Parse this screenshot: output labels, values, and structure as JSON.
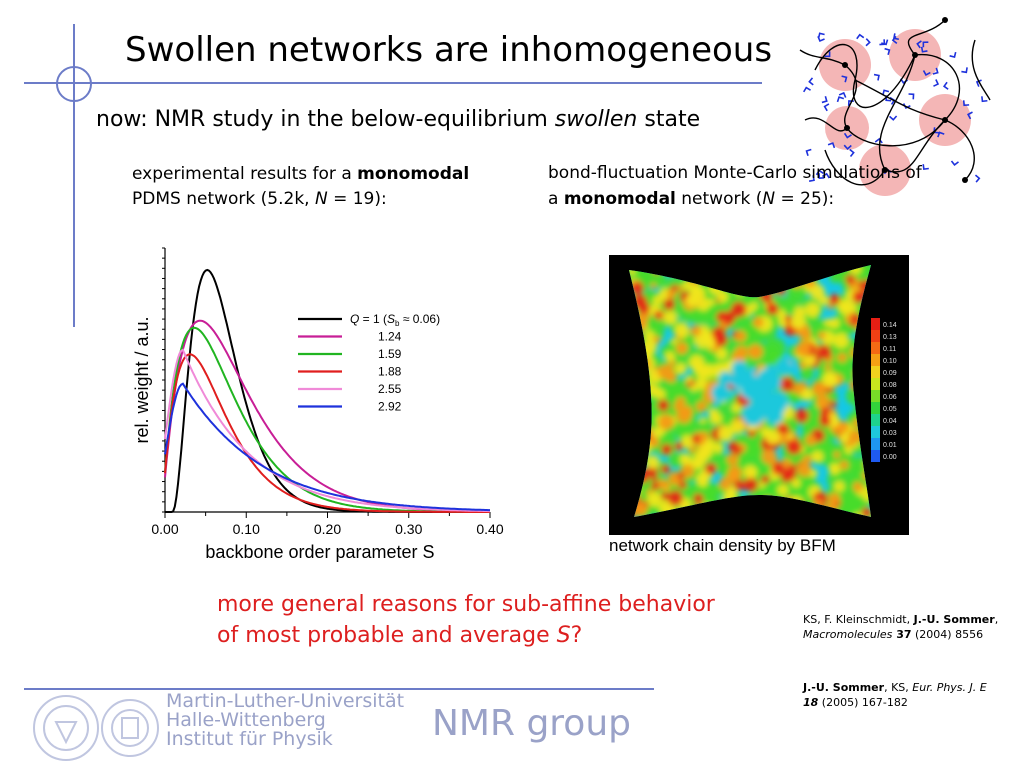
{
  "slide": {
    "title": "Swollen networks are inhomogeneous",
    "subtitle_pre": "now: NMR study in the below-equilibrium ",
    "subtitle_em": "swollen",
    "subtitle_post": " state",
    "left_caption": {
      "line1_pre": "experimental results for a ",
      "line1_bold": "monomodal",
      "line2_pre": "PDMS network (5.2k, ",
      "line2_em": "N",
      "line2_post": " = 19):"
    },
    "right_caption": {
      "line1": "bond-fluctuation Monte-Carlo simulations of",
      "line2_pre": "a ",
      "line2_bold": "monomodal",
      "line2_mid": " network (",
      "line2_em": "N",
      "line2_post": " = 25):"
    },
    "sim_label": "network chain density by BFM",
    "question_line1": "more general reasons for sub-affine behavior",
    "question_line2_pre": "of most probable and average ",
    "question_line2_em": "S",
    "question_line2_post": "?",
    "ref1": {
      "authors_pre": "KS, F. Kleinschmidt, ",
      "authors_bold": "J.-U. Sommer",
      "sep": ", ",
      "journal": "Macromolecules",
      "volume": " 37",
      "rest": " (2004) 8556"
    },
    "ref2": {
      "authors_bold": "J.-U. Sommer",
      "sep": ", KS, ",
      "journal": "Eur. Phys. J. E",
      "volume": " 18",
      "rest": " (2005) 167-182"
    },
    "uni_line1": "Martin-Luther-Universität",
    "uni_line2": "Halle-Wittenberg",
    "uni_line3": "Institut für Physik",
    "group": "NMR group"
  },
  "colors": {
    "accent_line": "#6c7cc8",
    "question": "#dd1f1f",
    "footer_text": "#9aa2c8"
  },
  "colorbar_ticks": [
    "0.14",
    "0.13",
    "0.11",
    "0.10",
    "0.09",
    "0.08",
    "0.06",
    "0.05",
    "0.04",
    "0.03",
    "0.01",
    "0.00"
  ],
  "chart_data": {
    "type": "line",
    "xlabel": "backbone order parameter S",
    "ylabel": "rel. weight  /  a.u.",
    "xlim": [
      0.0,
      0.4
    ],
    "x_ticks": [
      "0.00",
      "0.10",
      "0.20",
      "0.30",
      "0.40"
    ],
    "legend_placement": "top-right",
    "legend_header_extra": "( S_b ≈ 0.06)",
    "series": [
      {
        "name": "Q = 1",
        "color": "#000000",
        "peak": 0.052,
        "height": 1.0,
        "kind": "narrow"
      },
      {
        "name": "1.24",
        "color": "#c81e96",
        "peak": 0.045,
        "height": 0.79,
        "kind": "mid"
      },
      {
        "name": "1.59",
        "color": "#21b521",
        "peak": 0.038,
        "height": 0.76,
        "kind": "mid"
      },
      {
        "name": "1.88",
        "color": "#e01e1e",
        "peak": 0.033,
        "height": 0.65,
        "kind": "mid"
      },
      {
        "name": "2.55",
        "color": "#f08ad8",
        "peak": 0.022,
        "height": 0.67,
        "kind": "broad"
      },
      {
        "name": "2.92",
        "color": "#1e32dc",
        "peak": 0.022,
        "height": 0.53,
        "kind": "broad"
      }
    ]
  }
}
